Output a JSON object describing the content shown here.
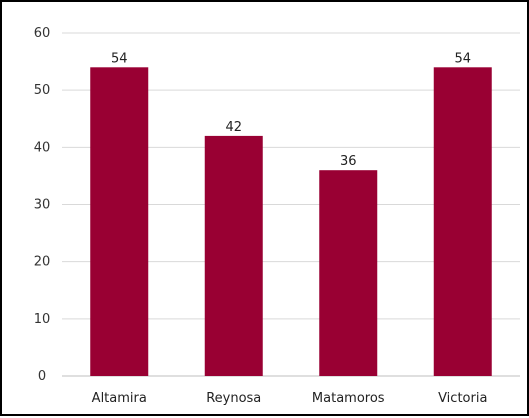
{
  "chart_data": {
    "type": "bar",
    "categories": [
      "Altamira",
      "Reynosa",
      "Matamoros",
      "Victoria"
    ],
    "values": [
      54,
      42,
      36,
      54
    ],
    "data_labels": [
      "54",
      "42",
      "36",
      "54"
    ],
    "ylim": [
      0,
      60
    ],
    "yticks": [
      0,
      10,
      20,
      30,
      40,
      50,
      60
    ],
    "ytick_labels": [
      "0",
      "10",
      "20",
      "30",
      "40",
      "50",
      "60"
    ],
    "grid": true,
    "legend": "none",
    "bar_color": "#990033",
    "grid_color": "#d9d9d9"
  }
}
